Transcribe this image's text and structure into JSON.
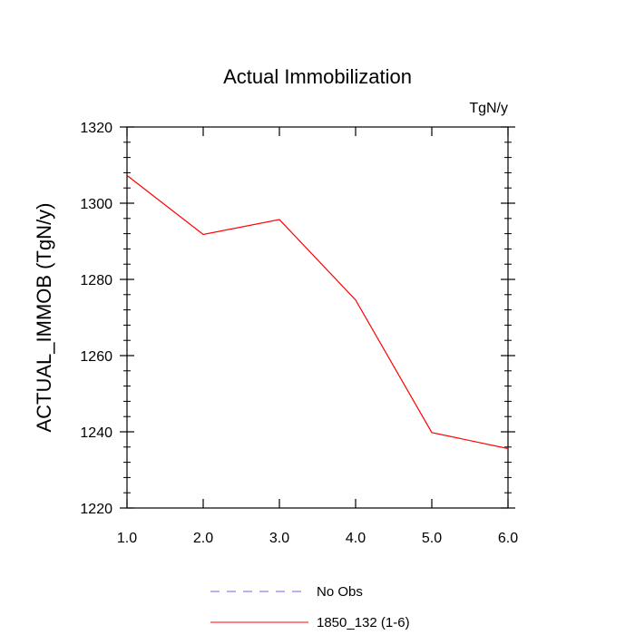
{
  "chart_data": {
    "type": "line",
    "title": "Actual Immobilization",
    "units_label": "TgN/y",
    "ylabel": "ACTUAL_IMMOB  (TgN/y)",
    "xlabel": "",
    "xlim": [
      1.0,
      6.0
    ],
    "ylim": [
      1220,
      1320
    ],
    "x_ticks": [
      1.0,
      2.0,
      3.0,
      4.0,
      5.0,
      6.0
    ],
    "x_tick_labels": [
      "1.0",
      "2.0",
      "3.0",
      "4.0",
      "5.0",
      "6.0"
    ],
    "y_ticks": [
      1220,
      1240,
      1260,
      1280,
      1300,
      1320
    ],
    "y_tick_labels": [
      "1220",
      "1240",
      "1260",
      "1280",
      "1300",
      "1320"
    ],
    "series": [
      {
        "name": "1850_132 (1-6)",
        "color": "#ff0000",
        "x": [
          1.0,
          2.0,
          3.0,
          4.0,
          5.0,
          6.0
        ],
        "values": [
          1307.3,
          1291.8,
          1295.7,
          1274.6,
          1239.8,
          1235.6
        ]
      }
    ],
    "legend": {
      "placement": "bottom-center",
      "entries": [
        {
          "label": "No Obs",
          "color": "#6666ff",
          "style": "dashed"
        },
        {
          "label": "1850_132 (1-6)",
          "color": "#ff0000",
          "style": "solid"
        }
      ]
    }
  }
}
